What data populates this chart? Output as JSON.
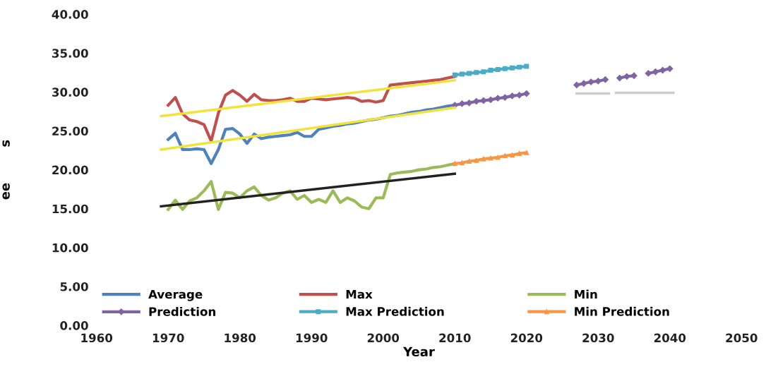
{
  "chart_data": {
    "type": "line",
    "xlabel": "Year",
    "ylabel": "ee        s",
    "xlim": [
      1960,
      2050
    ],
    "xticks": [
      1960,
      1970,
      1980,
      1990,
      2000,
      2010,
      2020,
      2030,
      2040,
      2050
    ],
    "ylim": [
      0,
      40
    ],
    "yticks": [
      {
        "value": 0,
        "label": "0.00"
      },
      {
        "value": 5,
        "label": "5.00"
      },
      {
        "value": 10,
        "label": "10.00"
      },
      {
        "value": 15,
        "label": "15.00"
      },
      {
        "value": 20,
        "label": "20.00"
      },
      {
        "value": 25,
        "label": "25.00"
      },
      {
        "value": 30,
        "label": "30.00"
      },
      {
        "value": 35,
        "label": "35.00"
      },
      {
        "value": 40,
        "label": "40.00"
      }
    ],
    "grid": false,
    "legend": "bottom",
    "series": [
      {
        "name": "Average",
        "color": "#4f81bd",
        "marker": "none",
        "x": [
          1970,
          1971,
          1972,
          1973,
          1974,
          1975,
          1976,
          1977,
          1978,
          1979,
          1980,
          1981,
          1982,
          1983,
          1984,
          1985,
          1986,
          1987,
          1988,
          1989,
          1990,
          1991,
          1992,
          1993,
          1994,
          1995,
          1996,
          1997,
          1998,
          1999,
          2000,
          2001,
          2002,
          2003,
          2004,
          2005,
          2006,
          2007,
          2008,
          2009,
          2010
        ],
        "values": [
          23.9,
          24.7,
          22.6,
          22.6,
          22.7,
          22.6,
          20.8,
          22.6,
          25.2,
          25.3,
          24.6,
          23.4,
          24.6,
          24.0,
          24.2,
          24.3,
          24.4,
          24.5,
          24.8,
          24.3,
          24.3,
          25.2,
          25.4,
          25.6,
          25.7,
          25.9,
          26.0,
          26.2,
          26.4,
          26.5,
          26.7,
          26.9,
          27.0,
          27.2,
          27.4,
          27.5,
          27.7,
          27.8,
          28.0,
          28.2,
          28.3
        ]
      },
      {
        "name": "Max",
        "color": "#c0504d",
        "marker": "none",
        "x": [
          1970,
          1971,
          1972,
          1973,
          1974,
          1975,
          1976,
          1977,
          1978,
          1979,
          1980,
          1981,
          1982,
          1983,
          1984,
          1985,
          1986,
          1987,
          1988,
          1989,
          1990,
          1991,
          1992,
          1993,
          1994,
          1995,
          1996,
          1997,
          1998,
          1999,
          2000,
          2001,
          2002,
          2003,
          2004,
          2005,
          2006,
          2007,
          2008,
          2009,
          2010
        ],
        "values": [
          28.3,
          29.3,
          27.2,
          26.4,
          26.2,
          25.8,
          23.7,
          27.3,
          29.6,
          30.2,
          29.6,
          28.8,
          29.7,
          29.0,
          28.9,
          28.9,
          29.0,
          29.2,
          28.8,
          28.8,
          29.2,
          29.1,
          29.0,
          29.1,
          29.2,
          29.3,
          29.2,
          28.8,
          28.9,
          28.7,
          28.9,
          30.9,
          31.0,
          31.1,
          31.2,
          31.3,
          31.4,
          31.5,
          31.6,
          31.8,
          32.0
        ]
      },
      {
        "name": "Min",
        "color": "#9bbb59",
        "marker": "none",
        "x": [
          1970,
          1971,
          1972,
          1973,
          1974,
          1975,
          1976,
          1977,
          1978,
          1979,
          1980,
          1981,
          1982,
          1983,
          1984,
          1985,
          1986,
          1987,
          1988,
          1989,
          1990,
          1991,
          1992,
          1993,
          1994,
          1995,
          1996,
          1997,
          1998,
          1999,
          2000,
          2001,
          2002,
          2003,
          2004,
          2005,
          2006,
          2007,
          2008,
          2009,
          2010
        ],
        "values": [
          14.9,
          16.1,
          14.9,
          16.0,
          16.4,
          17.3,
          18.5,
          14.9,
          17.1,
          17.0,
          16.4,
          17.3,
          17.8,
          16.7,
          16.1,
          16.4,
          17.0,
          17.3,
          16.2,
          16.7,
          15.8,
          16.2,
          15.8,
          17.3,
          15.8,
          16.4,
          16.0,
          15.2,
          15.0,
          16.4,
          16.4,
          19.4,
          19.6,
          19.7,
          19.8,
          20.0,
          20.1,
          20.3,
          20.4,
          20.6,
          20.8
        ]
      },
      {
        "name": "Prediction",
        "color": "#8064a2",
        "marker": "diamond",
        "x": [
          2010,
          2011,
          2012,
          2013,
          2014,
          2015,
          2016,
          2017,
          2018,
          2019,
          2020,
          2021,
          2027,
          2028,
          2029,
          2030,
          2031,
          2032,
          2033,
          2034,
          2035,
          2036,
          2037,
          2038,
          2039,
          2040
        ],
        "values": [
          28.3,
          28.5,
          28.6,
          28.8,
          28.9,
          29.0,
          29.2,
          29.3,
          29.5,
          29.6,
          29.8,
          null,
          30.9,
          31.1,
          31.3,
          31.4,
          31.6,
          null,
          31.8,
          32.0,
          32.1,
          null,
          32.4,
          32.6,
          32.8,
          33.0
        ]
      },
      {
        "name": "Max Prediction",
        "color": "#4bacc6",
        "marker": "square",
        "x": [
          2010,
          2011,
          2012,
          2013,
          2014,
          2015,
          2016,
          2017,
          2018,
          2019,
          2020
        ],
        "values": [
          32.2,
          32.3,
          32.4,
          32.5,
          32.6,
          32.8,
          32.9,
          33.0,
          33.1,
          33.2,
          33.3
        ]
      },
      {
        "name": "Min Prediction",
        "color": "#f79646",
        "marker": "triangle",
        "x": [
          2010,
          2011,
          2012,
          2013,
          2014,
          2015,
          2016,
          2017,
          2018,
          2019,
          2020
        ],
        "values": [
          20.8,
          20.9,
          21.1,
          21.2,
          21.4,
          21.5,
          21.6,
          21.8,
          21.9,
          22.1,
          22.2
        ]
      },
      {
        "color": "#f2e33a",
        "marker": "none",
        "x": [
          1969,
          2010
        ],
        "values": [
          26.9,
          31.5
        ]
      },
      {
        "color": "#f2e33a",
        "marker": "none",
        "x": [
          1969,
          2010
        ],
        "values": [
          22.6,
          28.0
        ]
      },
      {
        "color": "#222222",
        "marker": "none",
        "x": [
          1969,
          2010
        ],
        "values": [
          15.3,
          19.5
        ]
      },
      {
        "color": "#cccccc",
        "marker": "none",
        "x": [
          2027,
          2031.5
        ],
        "values": [
          29.8,
          29.8
        ]
      },
      {
        "color": "#cccccc",
        "marker": "none",
        "x": [
          2032.5,
          2040.5
        ],
        "values": [
          29.9,
          29.9
        ]
      }
    ]
  }
}
